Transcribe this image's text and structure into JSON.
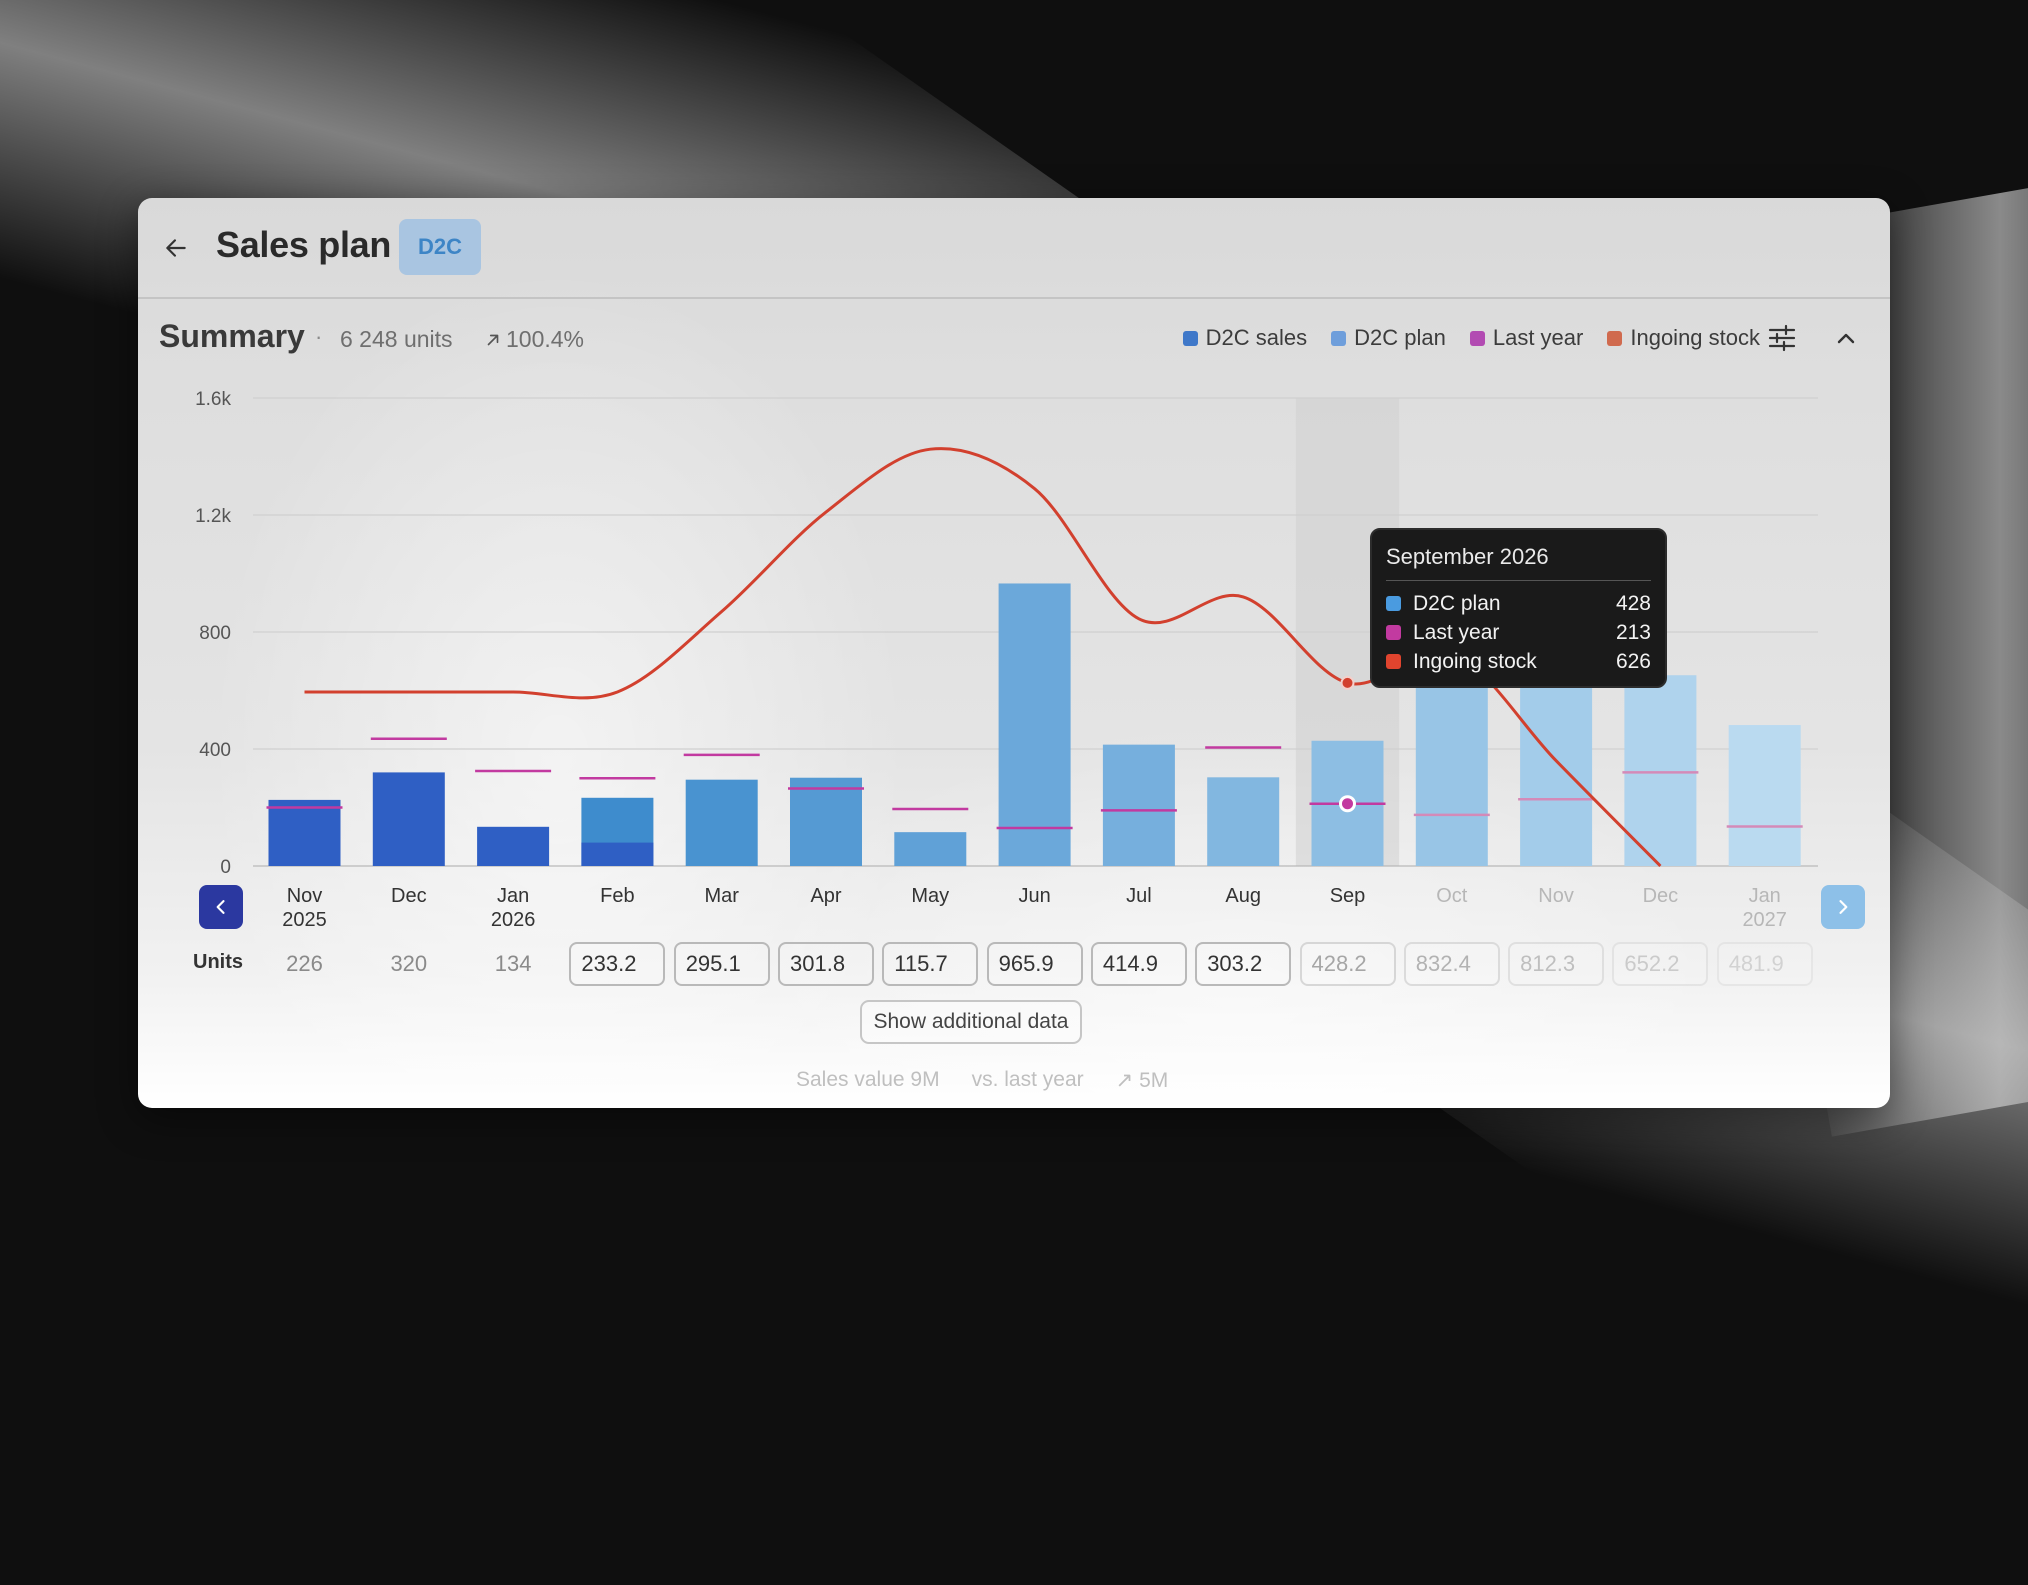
{
  "header": {
    "title": "Sales plan",
    "badge": "D2C"
  },
  "summary": {
    "title": "Summary",
    "separator": "·",
    "units": "6 248 units",
    "change": "100.4%"
  },
  "legend": [
    {
      "label": "D2C sales",
      "color": "#3f78c9"
    },
    {
      "label": "D2C plan",
      "color": "#6e9edb"
    },
    {
      "label": "Last year",
      "color": "#b24bb2"
    },
    {
      "label": "Ingoing stock",
      "color": "#d06a4e"
    }
  ],
  "icons": {
    "back": "arrow-left-icon",
    "filter": "sliders-icon",
    "collapse": "chevron-up-icon",
    "prev": "chevron-left-icon",
    "next": "chevron-right-icon",
    "trend": "arrow-up-right-icon"
  },
  "chart_data": {
    "type": "bar",
    "y_ticks": [
      "1.6k",
      "1.2k",
      "800",
      "400",
      "0"
    ],
    "ylim": [
      0,
      1600
    ],
    "months": [
      {
        "line1": "Nov",
        "line2": "2025"
      },
      {
        "line1": "Dec",
        "line2": ""
      },
      {
        "line1": "Jan",
        "line2": "2026"
      },
      {
        "line1": "Feb",
        "line2": ""
      },
      {
        "line1": "Mar",
        "line2": ""
      },
      {
        "line1": "Apr",
        "line2": ""
      },
      {
        "line1": "May",
        "line2": ""
      },
      {
        "line1": "Jun",
        "line2": ""
      },
      {
        "line1": "Jul",
        "line2": ""
      },
      {
        "line1": "Aug",
        "line2": ""
      },
      {
        "line1": "Sep",
        "line2": ""
      },
      {
        "line1": "Oct",
        "line2": ""
      },
      {
        "line1": "Nov",
        "line2": ""
      },
      {
        "line1": "Dec",
        "line2": ""
      },
      {
        "line1": "Jan",
        "line2": "2027"
      }
    ],
    "series": [
      {
        "name": "D2C sales",
        "values": [
          226,
          320,
          134,
          80,
          null,
          null,
          null,
          null,
          null,
          null,
          null,
          null,
          null,
          null,
          null
        ]
      },
      {
        "name": "D2C plan",
        "values": [
          null,
          null,
          null,
          233.2,
          295.1,
          301.8,
          115.7,
          965.9,
          414.9,
          303.2,
          428.2,
          832.4,
          812.3,
          652.2,
          481.9
        ]
      },
      {
        "name": "Last year",
        "values": [
          200,
          435,
          325,
          300,
          380,
          265,
          195,
          130,
          190,
          405,
          213,
          175,
          228,
          320,
          135
        ]
      },
      {
        "name": "Ingoing stock",
        "values": [
          595,
          595,
          595,
          595,
          870,
          1210,
          1425,
          1290,
          845,
          920,
          626,
          730,
          360,
          0,
          null
        ]
      }
    ],
    "highlight_index": 10,
    "tooltip": {
      "title": "September 2026",
      "rows": [
        {
          "label": "D2C plan",
          "value": "428",
          "color": "#4a9be0"
        },
        {
          "label": "Last year",
          "value": "213",
          "color": "#c23aa0"
        },
        {
          "label": "Ingoing stock",
          "value": "626",
          "color": "#e0442e"
        }
      ]
    }
  },
  "units_row": {
    "label": "Units",
    "values": [
      "226",
      "320",
      "134",
      "233.2",
      "295.1",
      "301.8",
      "115.7",
      "965.9",
      "414.9",
      "303.2",
      "428.2",
      "832.4",
      "812.3",
      "652.2",
      "481.9"
    ],
    "editable_from_index": 3
  },
  "show_more": "Show additional data",
  "footer": {
    "sales_value": "Sales value 9M",
    "vs_last_year": "vs. last year",
    "vs_value": "5M"
  }
}
